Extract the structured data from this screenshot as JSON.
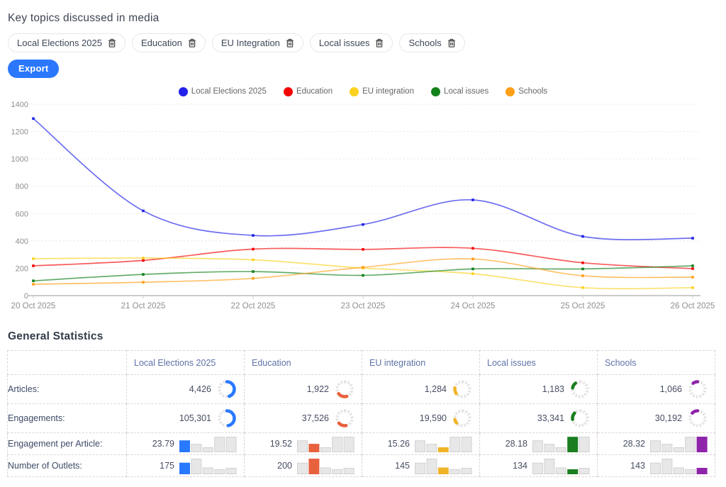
{
  "page": {
    "title": "Key topics discussed in media"
  },
  "topics_bar": {
    "chips": [
      {
        "label": "Local Elections 2025"
      },
      {
        "label": "Education"
      },
      {
        "label": "EU Integration"
      },
      {
        "label": "Local issues"
      },
      {
        "label": "Schools"
      }
    ]
  },
  "export_button": {
    "label": "Export"
  },
  "chart_data": {
    "type": "line",
    "x": [
      "20 Oct 2025",
      "21 Oct 2025",
      "22 Oct 2025",
      "23 Oct 2025",
      "24 Oct 2025",
      "25 Oct 2025",
      "26 Oct 2025"
    ],
    "series": [
      {
        "name": "Local Elections 2025",
        "color": "#2121ea",
        "values": [
          1295,
          620,
          440,
          520,
          700,
          433,
          420
        ]
      },
      {
        "name": "Education",
        "color": "#f40404",
        "values": [
          218,
          257,
          340,
          338,
          346,
          240,
          197
        ]
      },
      {
        "name": "EU integration",
        "color": "#fbd21f",
        "values": [
          270,
          275,
          262,
          201,
          160,
          58,
          58
        ]
      },
      {
        "name": "Local issues",
        "color": "#12821b",
        "values": [
          108,
          155,
          176,
          148,
          195,
          195,
          218
        ]
      },
      {
        "name": "Schools",
        "color": "#ff9f1a",
        "values": [
          83,
          98,
          126,
          207,
          268,
          145,
          135
        ]
      }
    ],
    "ylim": [
      0,
      1400
    ],
    "ytick_step": 200,
    "grid": "dotted-horizontal",
    "legend_position": "top"
  },
  "stats": {
    "heading": "General Statistics",
    "columns": [
      {
        "label": "Local Elections 2025",
        "color": "#2979ff"
      },
      {
        "label": "Education",
        "color": "#e8613d"
      },
      {
        "label": "EU integration",
        "color": "#f0b429"
      },
      {
        "label": "Local issues",
        "color": "#1b7e20"
      },
      {
        "label": "Schools",
        "color": "#8e24aa"
      }
    ],
    "rows": [
      {
        "label": "Articles:",
        "widget": "donut",
        "display": [
          "4,426",
          "1,922",
          "1,284",
          "1,183",
          "1,066"
        ],
        "values": [
          4426,
          1922,
          1284,
          1183,
          1066
        ]
      },
      {
        "label": "Engagements:",
        "widget": "donut",
        "display": [
          "105,301",
          "37,526",
          "19,590",
          "33,341",
          "30,192"
        ],
        "values": [
          105301,
          37526,
          19590,
          33341,
          30192
        ]
      },
      {
        "label": "Engagement per Article:",
        "widget": "bars",
        "display": [
          "23.79",
          "19.52",
          "15.26",
          "28.18",
          "28.32"
        ],
        "values": [
          23.79,
          19.52,
          15.26,
          28.18,
          28.32
        ]
      },
      {
        "label": "Number of Outlets:",
        "widget": "bars",
        "display": [
          "175",
          "200",
          "145",
          "134",
          "143"
        ],
        "values": [
          175,
          200,
          145,
          134,
          143
        ]
      }
    ]
  }
}
